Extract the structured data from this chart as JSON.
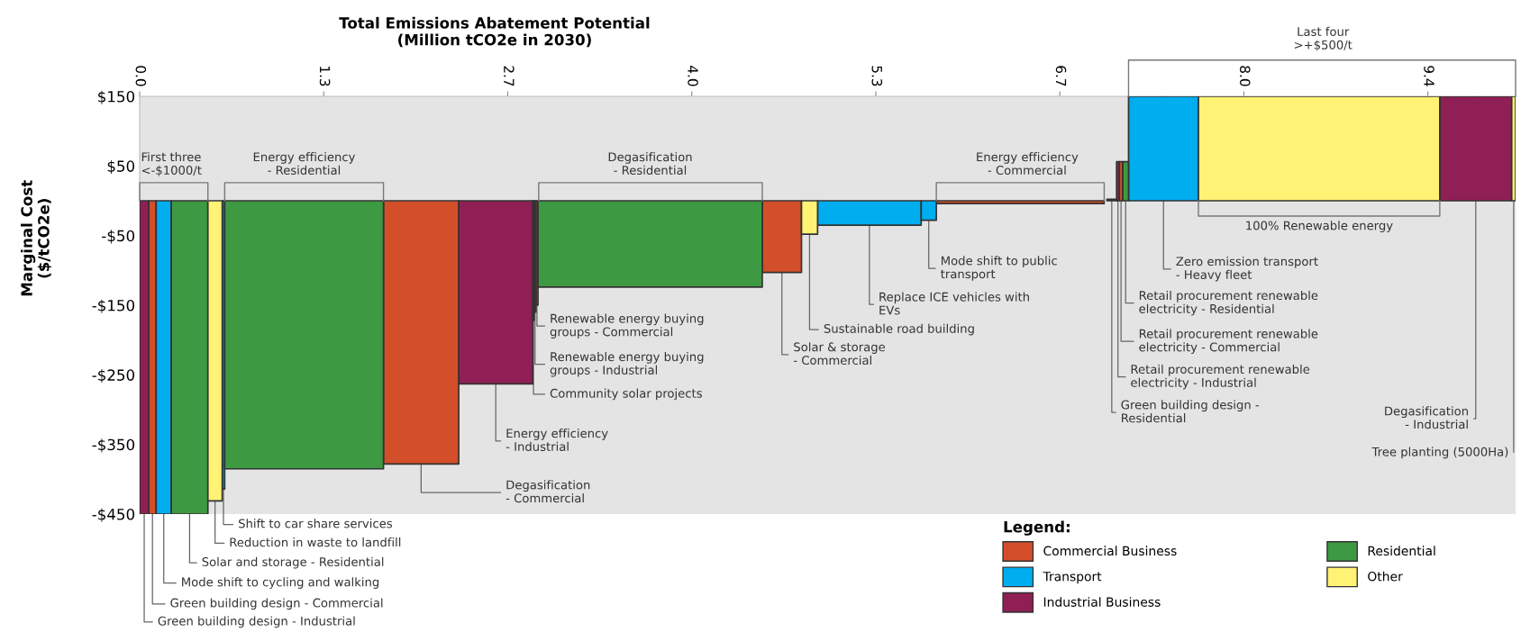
{
  "chart_data": {
    "type": "area",
    "xlabel": "Total Emissions Abatement Potential\n(Million tCO2e in 2030)",
    "ylabel": "Marginal Cost\n($/tCO2e)",
    "legend_title": "Legend:",
    "legend": "bottom right",
    "xlim": [
      0,
      10
    ],
    "xticks": [
      {
        "value": 0,
        "label": "0.0"
      },
      {
        "value": 1.3375,
        "label": "1.3"
      },
      {
        "value": 2.675,
        "label": "2.7"
      },
      {
        "value": 4.0125,
        "label": "4.0"
      },
      {
        "value": 5.35,
        "label": "5.3"
      },
      {
        "value": 6.6875,
        "label": "6.7"
      },
      {
        "value": 8.025,
        "label": "8.0"
      },
      {
        "value": 9.3625,
        "label": "9.4"
      }
    ],
    "ylim": [
      -450,
      150
    ],
    "yticks": [
      {
        "value": 150,
        "label": "$150"
      },
      {
        "value": 50,
        "label": "$50"
      },
      {
        "value": -50,
        "label": "-$50"
      },
      {
        "value": -150,
        "label": "-$150"
      },
      {
        "value": -250,
        "label": "-$250"
      },
      {
        "value": -350,
        "label": "-$350"
      },
      {
        "value": -450,
        "label": "-$450"
      }
    ],
    "series": [
      {
        "name": "Commercial Business",
        "color": "#d24f2a",
        "x": [
          0.066,
          0.12,
          1.772,
          2.319,
          2.88,
          2.895,
          4.525,
          4.81,
          5.79,
          7.01,
          7.12,
          7.145
        ],
        "values": [
          -450,
          -450,
          -378,
          -378,
          -150,
          -150,
          -103,
          -103,
          -4,
          -4,
          56,
          56
        ]
      },
      {
        "name": "Transport",
        "color": "#00adef",
        "x": [
          0.12,
          0.23,
          0.6,
          0.618,
          4.927,
          5.68,
          5.68,
          5.79,
          7.187,
          7.695
        ],
        "values": [
          -450,
          -450,
          -414,
          -414,
          -35,
          -35,
          -28,
          -28,
          150,
          150
        ]
      },
      {
        "name": "Industrial Business",
        "color": "#8f1f55",
        "x": [
          0,
          0.066,
          2.319,
          2.857,
          2.867,
          2.88,
          7.1,
          7.12,
          9.449,
          9.972
        ],
        "values": [
          -450,
          -450,
          -263,
          -263,
          -160,
          -160,
          56,
          56,
          150,
          150
        ]
      },
      {
        "name": "Residential",
        "color": "#3e9a42",
        "x": [
          0.23,
          0.496,
          0.618,
          1.772,
          2.895,
          4.525,
          7.03,
          7.1,
          7.145,
          7.187
        ],
        "values": [
          -450,
          -450,
          -385,
          -385,
          -124,
          -124,
          2,
          2,
          56,
          56
        ]
      },
      {
        "name": "Other",
        "color": "#fff275",
        "x": [
          0.496,
          0.6,
          2.857,
          2.867,
          4.81,
          4.927,
          7.695,
          9.449,
          9.972,
          10
        ],
        "values": [
          -431,
          -431,
          -172,
          -172,
          -48,
          -48,
          150,
          150,
          150,
          150
        ]
      }
    ],
    "annotations": [
      "First three\n<-$1000/t",
      "Energy efficiency\n- Residential",
      "Degasification\n- Residential",
      "Energy efficiency\n- Commercial",
      "Last four\n>+$500/t",
      "100% Renewable energy",
      {
        "text": "Shift to car share services",
        "x": 0.609,
        "y": -414
      },
      {
        "text": "Reduction in waste to landfill",
        "x": 0.548,
        "y": -431
      },
      {
        "text": "Solar and storage - Residential",
        "x": 0.363,
        "y": -450
      },
      {
        "text": "Mode shift to cycling and walking",
        "x": 0.175,
        "y": -450
      },
      {
        "text": "Green building design - Commercial",
        "x": 0.093,
        "y": -450
      },
      {
        "text": "Green building design - Industrial",
        "x": 0.033,
        "y": -450
      },
      {
        "text": "Renewable energy buying\ngroups - Commercial",
        "x": 2.8875,
        "y": -150
      },
      {
        "text": "Renewable energy buying\ngroups - Industrial",
        "x": 2.8735,
        "y": -160
      },
      {
        "text": "Community solar projects",
        "x": 2.862,
        "y": -172
      },
      {
        "text": "Energy efficiency\n- Industrial",
        "x": 2.588,
        "y": -263
      },
      {
        "text": "Degasification\n- Commercial",
        "x": 2.0455,
        "y": -378
      },
      {
        "text": "Solar & storage\n- Commercial",
        "x": 4.6675,
        "y": -103
      },
      {
        "text": "Sustainable road building",
        "x": 4.8685,
        "y": -48
      },
      {
        "text": "Replace ICE vehicles with\nEVs",
        "x": 5.3035,
        "y": -35
      },
      {
        "text": "Mode shift to public\ntransport",
        "x": 5.735,
        "y": -28
      },
      {
        "text": "Zero emission transport\n- Heavy fleet",
        "x": 7.441,
        "y": 150
      },
      {
        "text": "Retail procurement renewable\nelectricity - Residential",
        "x": 7.166,
        "y": 56
      },
      {
        "text": "Retail procurement renewable\nelectricity - Commercial",
        "x": 7.1325,
        "y": 56
      },
      {
        "text": "Retail procurement renewable\nelectricity - Industrial",
        "x": 7.11,
        "y": 56
      },
      {
        "text": "Green building design -\nResidential",
        "x": 7.065,
        "y": 2
      },
      {
        "text": "Degasification\n- Industrial",
        "x": 9.7105,
        "y": 150
      },
      "Tree planting (5000Ha)"
    ]
  }
}
